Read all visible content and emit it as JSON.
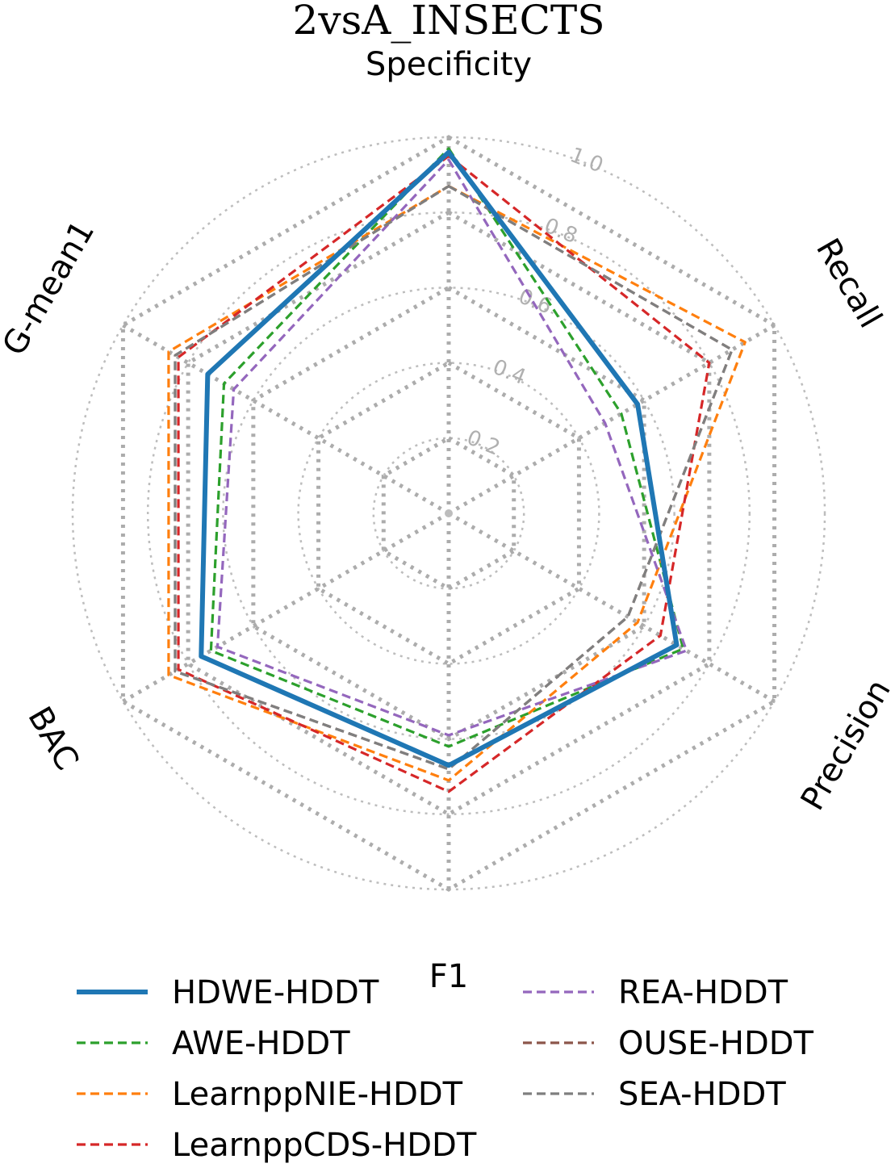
{
  "chart_data": {
    "type": "radar",
    "title": "2vsA_INSECTS",
    "axes": [
      "Specificity",
      "Recall",
      "Precision",
      "F1",
      "BAC",
      "G-mean1"
    ],
    "rlim": [
      0,
      1
    ],
    "rticks": [
      "0.2",
      "0.4",
      "0.6",
      "0.8",
      "1.0"
    ],
    "grid": true,
    "legend_position": "bottom",
    "series": [
      {
        "name": "HDWE-HDDT",
        "color": "#1f77b4",
        "style": "solid",
        "values": [
          0.96,
          0.58,
          0.7,
          0.67,
          0.76,
          0.74
        ]
      },
      {
        "name": "AWE-HDDT",
        "color": "#2ca02c",
        "style": "dashed",
        "values": [
          0.97,
          0.53,
          0.72,
          0.62,
          0.73,
          0.69
        ]
      },
      {
        "name": "LearnppNIE-HDDT",
        "color": "#ff7f0e",
        "style": "dashed",
        "values": [
          0.87,
          0.91,
          0.58,
          0.71,
          0.86,
          0.86
        ]
      },
      {
        "name": "LearnppCDS-HDDT",
        "color": "#d62728",
        "style": "dashed",
        "values": [
          0.95,
          0.8,
          0.65,
          0.74,
          0.83,
          0.83
        ]
      },
      {
        "name": "REA-HDDT",
        "color": "#9467bd",
        "style": "dashed",
        "values": [
          0.94,
          0.48,
          0.73,
          0.59,
          0.71,
          0.66
        ]
      },
      {
        "name": "OUSE-HDDT",
        "color": "#8c564b",
        "style": "dashed",
        "values": [
          0.87,
          0.87,
          0.55,
          0.68,
          0.84,
          0.84
        ]
      },
      {
        "name": "SEA-HDDT",
        "color": "#7f7f7f",
        "style": "dashed",
        "values": [
          0.87,
          0.87,
          0.55,
          0.68,
          0.84,
          0.84
        ]
      }
    ]
  }
}
